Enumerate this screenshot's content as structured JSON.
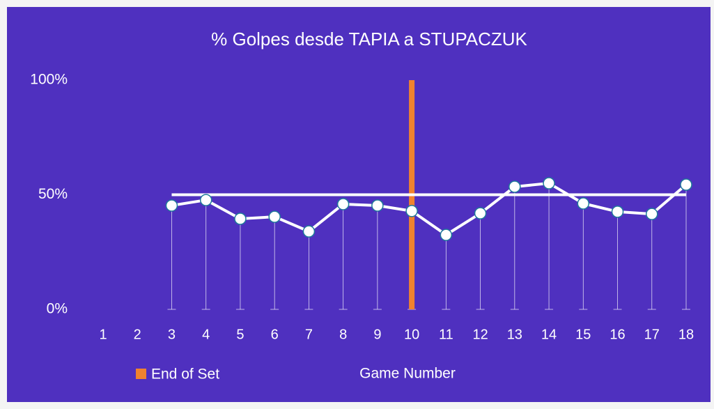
{
  "chart_data": {
    "type": "line",
    "title": "% Golpes desde TAPIA a STUPACZUK",
    "x_label": "Game Number",
    "categories": [
      "1",
      "2",
      "3",
      "4",
      "5",
      "6",
      "7",
      "8",
      "9",
      "10",
      "11",
      "12",
      "13",
      "14",
      "15",
      "16",
      "17",
      "18"
    ],
    "series": [
      {
        "color": "#ffffff",
        "values": [
          null,
          null,
          45.3,
          47.7,
          39.5,
          40.4,
          34.0,
          45.9,
          45.3,
          42.9,
          32.5,
          41.9,
          53.5,
          55.0,
          46.2,
          42.6,
          41.6,
          54.4
        ]
      },
      {
        "color": "#ffffff",
        "values": [
          null,
          null,
          50,
          50,
          50,
          50,
          50,
          50,
          50,
          50,
          50,
          50,
          50,
          50,
          50,
          50,
          50,
          50
        ]
      }
    ],
    "bars": {
      "name": "End of Set",
      "color": "#f0822f",
      "values": [
        null,
        null,
        null,
        null,
        null,
        null,
        null,
        null,
        null,
        100,
        null,
        null,
        null,
        null,
        null,
        null,
        null,
        null
      ]
    },
    "ylim": [
      0,
      100
    ],
    "yticks": [
      {
        "value": 0,
        "label": "0%"
      },
      {
        "value": 50,
        "label": "50%"
      },
      {
        "value": 100,
        "label": "100%"
      }
    ],
    "background": "#4f30bf"
  }
}
